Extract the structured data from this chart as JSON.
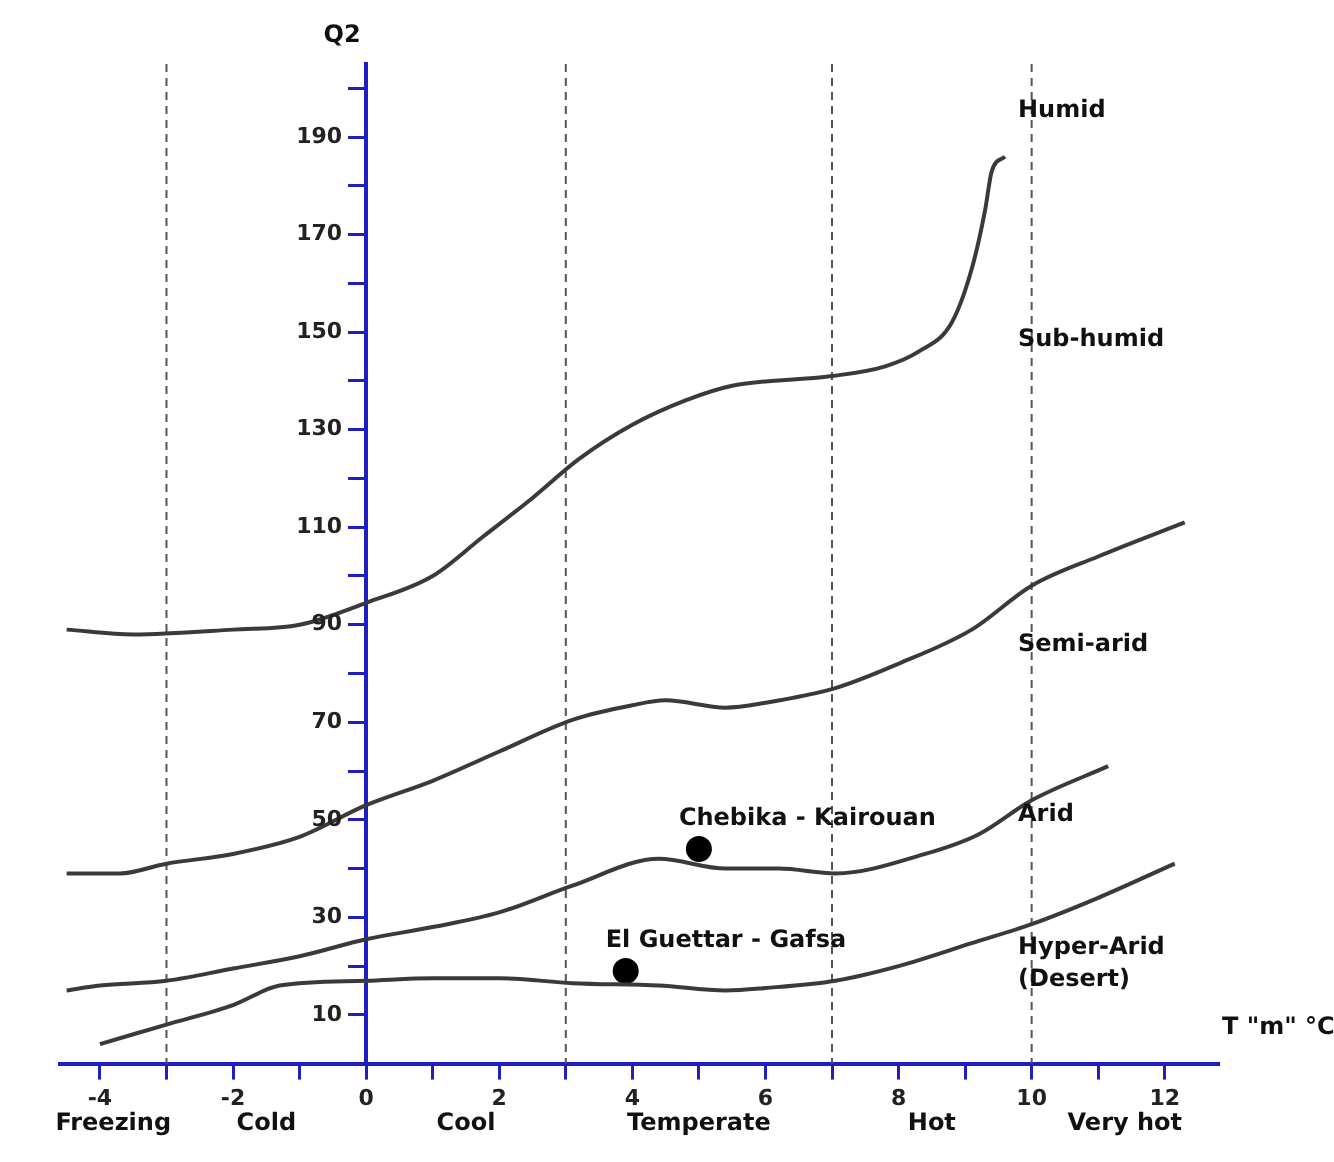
{
  "chart_data": {
    "type": "line",
    "xlabel": "T \"m\" °C",
    "ylabel": "Q2",
    "xlim": [
      -4.6,
      12.8
    ],
    "ylim": [
      0,
      205
    ],
    "xticks": [
      -4,
      {
        "value": -3,
        "label": null
      },
      -2,
      {
        "value": -1,
        "label": null
      },
      0,
      {
        "value": 1,
        "label": null
      },
      2,
      {
        "value": 3,
        "label": null
      },
      4,
      {
        "value": 5,
        "label": null
      },
      6,
      {
        "value": 7,
        "label": null
      },
      8,
      {
        "value": 9,
        "label": null
      },
      10,
      {
        "value": 11,
        "label": null
      },
      12
    ],
    "yticks": [
      10,
      {
        "value": 20,
        "label": null
      },
      30,
      {
        "value": 40,
        "label": null
      },
      50,
      {
        "value": 60,
        "label": null
      },
      70,
      {
        "value": 80,
        "label": null
      },
      90,
      {
        "value": 100,
        "label": null
      },
      110,
      {
        "value": 120,
        "label": null
      },
      130,
      {
        "value": 140,
        "label": null
      },
      150,
      {
        "value": 160,
        "label": null
      },
      170,
      {
        "value": 180,
        "label": null
      },
      190,
      {
        "value": 200,
        "label": null
      }
    ],
    "grid": false,
    "legend": false,
    "marker": "none",
    "line_style": "solid",
    "series": [
      {
        "color": "#3a3a3a",
        "x": [
          -4.5,
          -3.5,
          -2,
          -1,
          0,
          1,
          1.75,
          2.5,
          3.2,
          4,
          4.8,
          5.5,
          7,
          7.8,
          8.3,
          8.8,
          9.1,
          9.3,
          9.4,
          9.6
        ],
        "values": [
          89,
          88,
          89,
          90,
          94.5,
          100,
          108,
          116,
          124,
          131,
          136,
          139,
          141,
          143,
          146,
          152,
          163,
          175,
          183,
          186
        ]
      },
      {
        "color": "#3a3a3a",
        "x": [
          -4.5,
          -3.7,
          -3,
          -2,
          -1,
          0,
          1,
          2,
          3.1,
          4,
          4.5,
          5.4,
          6,
          7.05,
          8,
          9.1,
          10,
          11,
          12.3
        ],
        "values": [
          39,
          39,
          41,
          43,
          46.5,
          53,
          58,
          64,
          70.5,
          73.5,
          74.5,
          73,
          74,
          77,
          82,
          89,
          98,
          104,
          111
        ]
      },
      {
        "color": "#3a3a3a",
        "x": [
          -4.5,
          -4,
          -3,
          -2,
          -1,
          0,
          1,
          2,
          3.1,
          4.4,
          5.4,
          6.2,
          7.05,
          8.4,
          9.2,
          10,
          11.15
        ],
        "values": [
          15,
          16,
          17,
          19.5,
          22,
          25.5,
          28,
          31,
          36.5,
          42,
          40,
          40,
          39,
          43,
          47,
          54,
          61
        ]
      },
      {
        "color": "#3a3a3a",
        "x": [
          -4,
          -3,
          -2,
          -1.3,
          0,
          1,
          2,
          3.1,
          4.4,
          5.4,
          6,
          7.05,
          8,
          9.1,
          10,
          11,
          12.15
        ],
        "values": [
          4,
          8,
          12,
          16,
          17,
          17.5,
          17.5,
          16.5,
          16,
          15,
          15.5,
          17,
          20,
          24.7,
          28.6,
          34,
          41
        ]
      },
      {
        "type": "scatter",
        "name": "Chebika - Kairouan",
        "color": "#000000",
        "marker": "circle",
        "x": [
          5.0
        ],
        "values": [
          44
        ]
      },
      {
        "type": "scatter",
        "name": "El Guettar - Gafsa",
        "color": "#000000",
        "marker": "circle",
        "x": [
          3.9
        ],
        "values": [
          19
        ]
      }
    ],
    "ref_lines": [
      {
        "axis": "x",
        "value": -3,
        "color": "#555555",
        "line_style": "dashed"
      },
      {
        "axis": "x",
        "value": 3,
        "color": "#555555",
        "line_style": "dashed"
      },
      {
        "axis": "x",
        "value": 7,
        "color": "#555555",
        "line_style": "dashed"
      },
      {
        "axis": "x",
        "value": 10,
        "color": "#555555",
        "line_style": "dashed"
      }
    ],
    "annotations": [
      "Humid",
      "Sub-humid",
      "Semi-arid",
      "Arid",
      "Hyper-Arid\n(Desert)",
      "Freezing",
      "Cold",
      "Cool",
      "Temperate",
      "Hot",
      "Very hot"
    ]
  }
}
